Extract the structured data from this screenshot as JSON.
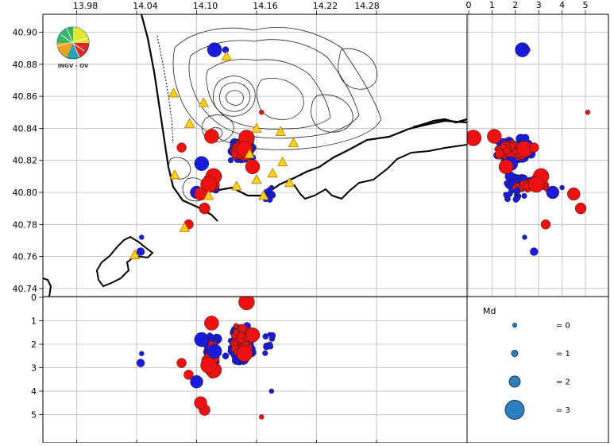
{
  "map": {
    "x_ticks": [
      "13.98",
      "14.04",
      "14.10",
      "14.16",
      "14.22",
      "14.28"
    ],
    "y_ticks": [
      "40.90",
      "40.88",
      "40.86",
      "40.84",
      "40.82",
      "40.80",
      "40.78",
      "40.76",
      "40.74"
    ],
    "logo_text": "INGV - OV",
    "stations": [
      {
        "lon": 14.13,
        "lat": 40.885
      },
      {
        "lon": 14.077,
        "lat": 40.862
      },
      {
        "lon": 14.107,
        "lat": 40.856
      },
      {
        "lon": 14.093,
        "lat": 40.843
      },
      {
        "lon": 14.16,
        "lat": 40.84
      },
      {
        "lon": 14.184,
        "lat": 40.838
      },
      {
        "lon": 14.197,
        "lat": 40.831
      },
      {
        "lon": 14.153,
        "lat": 40.824
      },
      {
        "lon": 14.186,
        "lat": 40.819
      },
      {
        "lon": 14.176,
        "lat": 40.812
      },
      {
        "lon": 14.078,
        "lat": 40.811
      },
      {
        "lon": 14.16,
        "lat": 40.808
      },
      {
        "lon": 14.193,
        "lat": 40.806
      },
      {
        "lon": 14.14,
        "lat": 40.804
      },
      {
        "lon": 14.112,
        "lat": 40.798
      },
      {
        "lon": 14.167,
        "lat": 40.798
      },
      {
        "lon": 14.088,
        "lat": 40.778
      },
      {
        "lon": 14.038,
        "lat": 40.761
      }
    ],
    "accent_blue": "#1a1adb",
    "accent_red": "#ee1111",
    "station_color": "#ffd21a"
  },
  "right_panel": {
    "x_ticks": [
      "0",
      "1",
      "2",
      "3",
      "4",
      "5"
    ]
  },
  "bottom_panel": {
    "y_ticks": [
      "0",
      "1",
      "2",
      "3",
      "4",
      "5"
    ]
  },
  "legend": {
    "title": "Md",
    "entries": [
      {
        "label": "= 0",
        "magnitude": 0
      },
      {
        "label": "= 1",
        "magnitude": 1
      },
      {
        "label": "= 2",
        "magnitude": 2
      },
      {
        "label": "= 3",
        "magnitude": 3
      }
    ],
    "marker_color": "#2e7fbf"
  }
}
